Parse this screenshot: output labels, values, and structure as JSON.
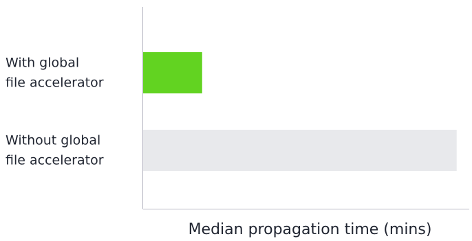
{
  "chart_data": {
    "type": "bar",
    "orientation": "horizontal",
    "categories": [
      [
        "With global",
        "file accelerator"
      ],
      [
        "Without global",
        "file accelerator"
      ]
    ],
    "values": [
      19,
      100
    ],
    "colors": [
      "#62d321",
      "#e8e9ec"
    ],
    "xlabel": "Median propagation time (mins)",
    "ylabel": "",
    "xlim": [
      0,
      104
    ],
    "grid": false,
    "show_x_ticks": false
  }
}
